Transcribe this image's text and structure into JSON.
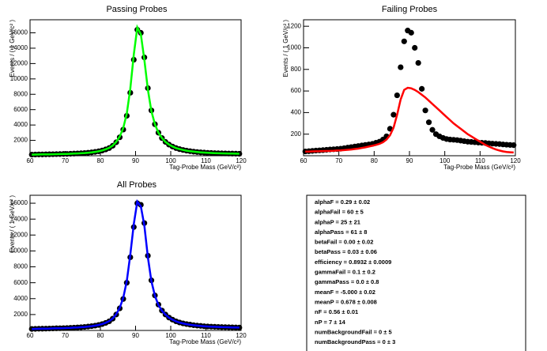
{
  "chart_data": [
    {
      "type": "scatter",
      "title": "Passing Probes",
      "x_label": "Tag-Probe Mass (GeV/c²)",
      "y_label": "Events / ( 1 GeV/c² )",
      "xlim": [
        60,
        120
      ],
      "xticks": [
        60,
        70,
        80,
        90,
        100,
        110,
        120
      ],
      "ylim": [
        0,
        17700
      ],
      "yticks": [
        2000,
        4000,
        6000,
        8000,
        10000,
        12000,
        14000,
        16000
      ],
      "x": [
        60.5,
        61.5,
        62.5,
        63.5,
        64.5,
        65.5,
        66.5,
        67.5,
        68.5,
        69.5,
        70.5,
        71.5,
        72.5,
        73.5,
        74.5,
        75.5,
        76.5,
        77.5,
        78.5,
        79.5,
        80.5,
        81.5,
        82.5,
        83.5,
        84.5,
        85.5,
        86.5,
        87.5,
        88.5,
        89.5,
        90.5,
        91.5,
        92.5,
        93.5,
        94.5,
        95.5,
        96.5,
        97.5,
        98.5,
        99.5,
        100.5,
        101.5,
        102.5,
        103.5,
        104.5,
        105.5,
        106.5,
        107.5,
        108.5,
        109.5,
        110.5,
        111.5,
        112.5,
        113.5,
        114.5,
        115.5,
        116.5,
        117.5,
        118.5,
        119.5
      ],
      "series": [
        {
          "style": "points",
          "color": "#000000",
          "values": [
            150,
            160,
            170,
            170,
            180,
            190,
            200,
            210,
            220,
            230,
            240,
            260,
            280,
            300,
            320,
            350,
            390,
            440,
            500,
            580,
            680,
            820,
            1000,
            1300,
            1750,
            2400,
            3400,
            5200,
            8200,
            12500,
            16400,
            16000,
            12800,
            8800,
            5900,
            4100,
            3000,
            2300,
            1800,
            1450,
            1200,
            1000,
            860,
            750,
            660,
            590,
            530,
            480,
            440,
            410,
            380,
            360,
            340,
            320,
            310,
            300,
            290,
            280,
            270,
            260
          ]
        },
        {
          "style": "line",
          "color": "#00ff00",
          "values": [
            140,
            150,
            160,
            170,
            180,
            190,
            200,
            210,
            220,
            230,
            240,
            255,
            275,
            295,
            320,
            350,
            390,
            440,
            500,
            580,
            690,
            840,
            1030,
            1330,
            1800,
            2500,
            3600,
            5500,
            8700,
            13200,
            16700,
            15800,
            12500,
            8600,
            5800,
            4100,
            3000,
            2300,
            1800,
            1460,
            1200,
            1000,
            860,
            750,
            660,
            590,
            530,
            480,
            440,
            410,
            380,
            360,
            340,
            320,
            310,
            300,
            290,
            280,
            270,
            260
          ]
        }
      ]
    },
    {
      "type": "scatter",
      "title": "Failing Probes",
      "x_label": "Tag-Probe Mass (GeV/c²)",
      "y_label": "Events / ( 1 GeV/c² )",
      "xlim": [
        60,
        120
      ],
      "xticks": [
        60,
        70,
        80,
        90,
        100,
        110,
        120
      ],
      "ylim": [
        0,
        1260
      ],
      "yticks": [
        200,
        400,
        600,
        800,
        1000,
        1200
      ],
      "x": [
        60.5,
        61.5,
        62.5,
        63.5,
        64.5,
        65.5,
        66.5,
        67.5,
        68.5,
        69.5,
        70.5,
        71.5,
        72.5,
        73.5,
        74.5,
        75.5,
        76.5,
        77.5,
        78.5,
        79.5,
        80.5,
        81.5,
        82.5,
        83.5,
        84.5,
        85.5,
        86.5,
        87.5,
        88.5,
        89.5,
        90.5,
        91.5,
        92.5,
        93.5,
        94.5,
        95.5,
        96.5,
        97.5,
        98.5,
        99.5,
        100.5,
        101.5,
        102.5,
        103.5,
        104.5,
        105.5,
        106.5,
        107.5,
        108.5,
        109.5,
        110.5,
        111.5,
        112.5,
        113.5,
        114.5,
        115.5,
        116.5,
        117.5,
        118.5,
        119.5
      ],
      "series": [
        {
          "style": "points",
          "color": "#000000",
          "values": [
            40,
            42,
            45,
            48,
            50,
            52,
            55,
            58,
            60,
            62,
            65,
            70,
            75,
            80,
            85,
            90,
            95,
            100,
            105,
            110,
            120,
            130,
            150,
            180,
            250,
            380,
            560,
            820,
            1060,
            1160,
            1140,
            1000,
            860,
            620,
            420,
            310,
            240,
            200,
            180,
            165,
            155,
            150,
            148,
            145,
            140,
            135,
            130,
            128,
            125,
            122,
            120,
            118,
            115,
            112,
            110,
            108,
            105,
            102,
            100,
            98
          ]
        },
        {
          "style": "line",
          "color": "#ff0000",
          "values": [
            38,
            39,
            40,
            41,
            42,
            43,
            44,
            45,
            46,
            48,
            50,
            52,
            55,
            58,
            62,
            66,
            72,
            78,
            85,
            92,
            100,
            110,
            125,
            150,
            190,
            260,
            380,
            520,
            610,
            630,
            625,
            610,
            590,
            565,
            540,
            510,
            480,
            450,
            420,
            390,
            360,
            330,
            300,
            275,
            250,
            225,
            200,
            180,
            160,
            140,
            120,
            100,
            85,
            70,
            58,
            48,
            40,
            35,
            32,
            30
          ]
        }
      ]
    },
    {
      "type": "scatter",
      "title": "All Probes",
      "x_label": "Tag-Probe Mass (GeV/c²)",
      "y_label": "Events / ( 1 GeV/c² )",
      "xlim": [
        60,
        120
      ],
      "xticks": [
        60,
        70,
        80,
        90,
        100,
        110,
        120
      ],
      "ylim": [
        0,
        17000
      ],
      "yticks": [
        2000,
        4000,
        6000,
        8000,
        10000,
        12000,
        14000,
        16000
      ],
      "x": [
        60.5,
        61.5,
        62.5,
        63.5,
        64.5,
        65.5,
        66.5,
        67.5,
        68.5,
        69.5,
        70.5,
        71.5,
        72.5,
        73.5,
        74.5,
        75.5,
        76.5,
        77.5,
        78.5,
        79.5,
        80.5,
        81.5,
        82.5,
        83.5,
        84.5,
        85.5,
        86.5,
        87.5,
        88.5,
        89.5,
        90.5,
        91.5,
        92.5,
        93.5,
        94.5,
        95.5,
        96.5,
        97.5,
        98.5,
        99.5,
        100.5,
        101.5,
        102.5,
        103.5,
        104.5,
        105.5,
        106.5,
        107.5,
        108.5,
        109.5,
        110.5,
        111.5,
        112.5,
        113.5,
        114.5,
        115.5,
        116.5,
        117.5,
        118.5,
        119.5
      ],
      "series": [
        {
          "style": "points",
          "color": "#000000",
          "values": [
            190,
            200,
            215,
            220,
            230,
            240,
            255,
            270,
            280,
            290,
            305,
            330,
            355,
            380,
            405,
            440,
            485,
            540,
            605,
            690,
            800,
            950,
            1150,
            1480,
            2000,
            2780,
            3960,
            6000,
            9200,
            13000,
            16000,
            15800,
            13500,
            9400,
            6300,
            4400,
            3250,
            2500,
            2000,
            1620,
            1360,
            1150,
            1000,
            890,
            800,
            730,
            660,
            610,
            570,
            530,
            500,
            480,
            460,
            440,
            420,
            410,
            400,
            385,
            370,
            360
          ]
        },
        {
          "style": "line",
          "color": "#0000ff",
          "values": [
            180,
            195,
            210,
            220,
            230,
            240,
            255,
            270,
            280,
            290,
            305,
            330,
            355,
            380,
            405,
            440,
            485,
            540,
            605,
            690,
            810,
            960,
            1170,
            1500,
            2030,
            2850,
            4100,
            6200,
            9500,
            13400,
            16200,
            15600,
            13200,
            9200,
            6200,
            4350,
            3200,
            2480,
            1990,
            1610,
            1350,
            1140,
            990,
            880,
            790,
            720,
            655,
            605,
            565,
            525,
            495,
            475,
            455,
            435,
            420,
            405,
            395,
            380,
            368,
            358
          ]
        }
      ]
    }
  ],
  "fit_parameters": [
    "alphaF =  0.29 ± 0.02",
    "alphaFail =  60 ± 5",
    "alphaP =  25 ± 21",
    "alphaPass =  61 ± 8",
    "betaFail =  0.00 ± 0.02",
    "betaPass =  0.03 ± 0.06",
    "efficiency =  0.8932 ± 0.0009",
    "gammaFail =  0.1 ± 0.2",
    "gammaPass =  0.0 ± 0.8",
    "meanF = -5.000 ± 0.02",
    "meanP =  0.678 ± 0.008",
    "nF =  0.56 ± 0.01",
    "nP =  7 ± 14",
    "numBackgroundFail =  0 ± 5",
    "numBackgroundPass =  0 ± 3"
  ]
}
